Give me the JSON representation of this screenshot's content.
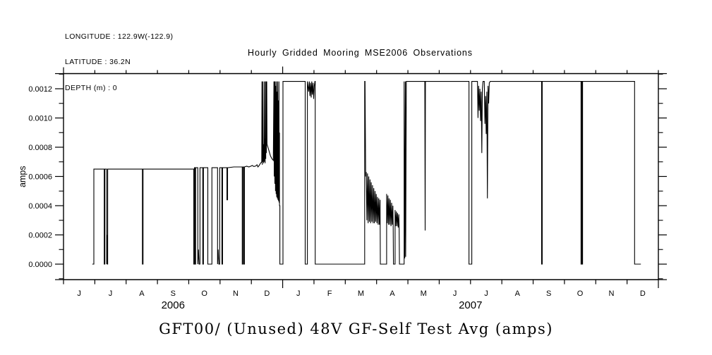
{
  "header": {
    "longitude": "LONGITUDE : 122.9W(-122.9)",
    "latitude": "LATITUDE : 36.2N",
    "depth": "DEPTH (m) : 0"
  },
  "title": "Hourly Gridded Mooring MSE2006 Observations",
  "bottom_title": "GFT00/ (Unused) 48V GF-Self Test Avg (amps)",
  "chart_data": {
    "type": "line",
    "title": "Hourly Gridded Mooring MSE2006 Observations",
    "xlabel": "",
    "ylabel": "amps",
    "line_color": "#000000",
    "background": "#ffffff",
    "grid": false,
    "legend": false,
    "x_axis": {
      "start": "Jun 2006",
      "end": "Jan 2008",
      "n_months": 19,
      "month_labels": [
        "J",
        "J",
        "A",
        "S",
        "O",
        "N",
        "D",
        "J",
        "F",
        "M",
        "A",
        "M",
        "J",
        "J",
        "A",
        "S",
        "O",
        "N",
        "D"
      ],
      "year_labels": [
        {
          "text": "2006",
          "span_months": [
            0,
            7
          ]
        },
        {
          "text": "2007",
          "span_months": [
            7,
            19
          ]
        }
      ],
      "year_boundary_ticks_months": [
        7,
        19
      ]
    },
    "y_axis": {
      "min": -0.0001,
      "max": 0.0013,
      "major_ticks": [
        {
          "value": 0.0,
          "label": "0.0000"
        },
        {
          "value": 0.0002,
          "label": "0.0002"
        },
        {
          "value": 0.0004,
          "label": "0.0004"
        },
        {
          "value": 0.0006,
          "label": "0.0006"
        },
        {
          "value": 0.0008,
          "label": "0.0008"
        },
        {
          "value": 0.001,
          "label": "0.0010"
        },
        {
          "value": 0.0012,
          "label": "0.0012"
        }
      ],
      "minor_ticks": [
        -0.0001,
        0.0001,
        0.0003,
        0.0005,
        0.0007,
        0.0009,
        0.0011,
        0.0013
      ]
    },
    "series": [
      {
        "name": "GFT00 48V GF-Self Test Avg",
        "units": "amps",
        "x_unit": "months since 2006-06-01",
        "points": [
          [
            0.92,
            0
          ],
          [
            0.97,
            0
          ],
          [
            0.97,
            0.00065
          ],
          [
            1.3,
            0.00065
          ],
          [
            1.3,
            0
          ],
          [
            1.32,
            0
          ],
          [
            1.32,
            0.00065
          ],
          [
            1.38,
            0.00065
          ],
          [
            1.38,
            0
          ],
          [
            1.39,
            0.0002
          ],
          [
            1.4,
            0
          ],
          [
            1.41,
            0
          ],
          [
            1.41,
            0.00065
          ],
          [
            2.52,
            0.00065
          ],
          [
            2.52,
            0
          ],
          [
            2.54,
            0
          ],
          [
            2.54,
            0.00065
          ],
          [
            4.16,
            0.00065
          ],
          [
            4.16,
            0
          ],
          [
            4.18,
            0
          ],
          [
            4.18,
            0.00066
          ],
          [
            4.2,
            0.00066
          ],
          [
            4.2,
            0
          ],
          [
            4.22,
            0
          ],
          [
            4.22,
            0.00066
          ],
          [
            4.29,
            0.00066
          ],
          [
            4.29,
            0
          ],
          [
            4.31,
            0.0001
          ],
          [
            4.33,
            0
          ],
          [
            4.36,
            0
          ],
          [
            4.36,
            0.00066
          ],
          [
            4.45,
            0.00066
          ],
          [
            4.45,
            0
          ],
          [
            4.47,
            0
          ],
          [
            4.47,
            0.00066
          ],
          [
            4.61,
            0.00066
          ],
          [
            4.61,
            0
          ],
          [
            4.74,
            0
          ],
          [
            4.74,
            0.00066
          ],
          [
            4.92,
            0.00066
          ],
          [
            4.92,
            0
          ],
          [
            4.94,
            0.0001
          ],
          [
            4.96,
            0
          ],
          [
            4.99,
            0
          ],
          [
            4.99,
            0.00066
          ],
          [
            5.06,
            0.00066
          ],
          [
            5.06,
            0
          ],
          [
            5.08,
            0
          ],
          [
            5.08,
            0.00066
          ],
          [
            5.22,
            0.00066
          ],
          [
            5.22,
            0.00044
          ],
          [
            5.24,
            0.00044
          ],
          [
            5.24,
            0.00066
          ],
          [
            5.44,
            0.000665
          ],
          [
            5.71,
            0.000665
          ],
          [
            5.71,
            0
          ],
          [
            5.73,
            0
          ],
          [
            5.73,
            0.000665
          ],
          [
            5.76,
            0.000665
          ],
          [
            5.76,
            0
          ],
          [
            5.78,
            0
          ],
          [
            5.78,
            0.000665
          ],
          [
            5.85,
            0.00067
          ],
          [
            5.92,
            0.000665
          ],
          [
            5.98,
            0.00067
          ],
          [
            6.03,
            0.000675
          ],
          [
            6.08,
            0.000668
          ],
          [
            6.14,
            0.000672
          ],
          [
            6.18,
            0.00068
          ],
          [
            6.21,
            0.000665
          ],
          [
            6.25,
            0.000675
          ],
          [
            6.29,
            0.00069
          ],
          [
            6.33,
            0.0007
          ],
          [
            6.34,
            0.00125
          ],
          [
            6.35,
            0.00068
          ],
          [
            6.36,
            0.00125
          ],
          [
            6.37,
            0.0007
          ],
          [
            6.38,
            0.00082
          ],
          [
            6.39,
            0.00069
          ],
          [
            6.4,
            0.0008
          ],
          [
            6.41,
            0.00125
          ],
          [
            6.42,
            0.0007
          ],
          [
            6.43,
            0.00086
          ],
          [
            6.44,
            0.00069
          ],
          [
            6.45,
            0.00125
          ],
          [
            6.46,
            0.00072
          ],
          [
            6.47,
            0.00125
          ],
          [
            6.48,
            0.00076
          ],
          [
            6.49,
            0.00125
          ],
          [
            6.5,
            0.00082
          ],
          [
            6.53,
            0.0008
          ],
          [
            6.57,
            0.00077
          ],
          [
            6.61,
            0.00074
          ],
          [
            6.66,
            0.00072
          ],
          [
            6.7,
            0.00071
          ],
          [
            6.72,
            0.00125
          ],
          [
            6.73,
            0.0006
          ],
          [
            6.74,
            0.00125
          ],
          [
            6.75,
            0.00055
          ],
          [
            6.76,
            0.00125
          ],
          [
            6.77,
            0.0005
          ],
          [
            6.78,
            0.00122
          ],
          [
            6.79,
            0.00048
          ],
          [
            6.8,
            0.00125
          ],
          [
            6.81,
            0.00046
          ],
          [
            6.82,
            0.00118
          ],
          [
            6.83,
            0.00045
          ],
          [
            6.84,
            0.00125
          ],
          [
            6.85,
            0.00044
          ],
          [
            6.86,
            0.00112
          ],
          [
            6.87,
            0.00043
          ],
          [
            6.88,
            0.00125
          ],
          [
            6.89,
            0.00042
          ],
          [
            6.9,
            0.0009
          ],
          [
            6.9,
            0.0004
          ],
          [
            6.91,
            0.0004
          ],
          [
            6.91,
            0
          ],
          [
            7.01,
            0
          ],
          [
            7.01,
            0.00125
          ],
          [
            7.72,
            0.00125
          ],
          [
            7.72,
            0
          ],
          [
            7.79,
            0
          ],
          [
            7.79,
            0.00125
          ],
          [
            7.83,
            0.00118
          ],
          [
            7.85,
            0.00125
          ],
          [
            7.87,
            0.00115
          ],
          [
            7.89,
            0.00124
          ],
          [
            7.91,
            0.00114
          ],
          [
            7.93,
            0.00125
          ],
          [
            7.95,
            0.00116
          ],
          [
            7.97,
            0.00124
          ],
          [
            7.99,
            0.00113
          ],
          [
            8.01,
            0.00122
          ],
          [
            8.03,
            0.00125
          ],
          [
            8.04,
            0.00125
          ],
          [
            8.04,
            0
          ],
          [
            9.62,
            0
          ],
          [
            9.62,
            0.00125
          ],
          [
            9.63,
            0.00125
          ],
          [
            9.65,
            0.0006
          ],
          [
            9.67,
            0.00063
          ],
          [
            9.69,
            0.0003
          ],
          [
            9.71,
            0.00062
          ],
          [
            9.73,
            0.00028
          ],
          [
            9.75,
            0.0006
          ],
          [
            9.77,
            0.00029
          ],
          [
            9.79,
            0.00058
          ],
          [
            9.81,
            0.00028
          ],
          [
            9.83,
            0.00056
          ],
          [
            9.85,
            0.00029
          ],
          [
            9.87,
            0.00054
          ],
          [
            9.89,
            0.00028
          ],
          [
            9.91,
            0.00052
          ],
          [
            9.93,
            0.00028
          ],
          [
            9.95,
            0.0005
          ],
          [
            9.97,
            0.00029
          ],
          [
            9.99,
            0.00048
          ],
          [
            10.01,
            0.00028
          ],
          [
            10.03,
            0.00046
          ],
          [
            10.05,
            0.00027
          ],
          [
            10.07,
            0.00045
          ],
          [
            10.09,
            0.00027
          ],
          [
            10.11,
            0.00044
          ],
          [
            10.12,
            0
          ],
          [
            10.32,
            0
          ],
          [
            10.32,
            0.00048
          ],
          [
            10.34,
            0.00028
          ],
          [
            10.36,
            0.00047
          ],
          [
            10.38,
            0.00027
          ],
          [
            10.4,
            0.00045
          ],
          [
            10.42,
            0.00027
          ],
          [
            10.44,
            0.00044
          ],
          [
            10.46,
            0.00026
          ],
          [
            10.48,
            0.00042
          ],
          [
            10.5,
            0.00027
          ],
          [
            10.52,
            0.0004
          ],
          [
            10.53,
            0.00026
          ],
          [
            10.54,
            0
          ],
          [
            10.59,
            0
          ],
          [
            10.59,
            0.00037
          ],
          [
            10.61,
            0.00026
          ],
          [
            10.63,
            0.00036
          ],
          [
            10.65,
            0.00026
          ],
          [
            10.67,
            0.00035
          ],
          [
            10.69,
            0.00025
          ],
          [
            10.71,
            0.00034
          ],
          [
            10.72,
            0.00026
          ],
          [
            10.73,
            0
          ],
          [
            10.88,
            0
          ],
          [
            10.88,
            0.00125
          ],
          [
            10.9,
            4e-05
          ],
          [
            10.92,
            0.00125
          ],
          [
            10.93,
            5e-05
          ],
          [
            10.95,
            0.00125
          ],
          [
            11.54,
            0.00125
          ],
          [
            11.55,
            0.00023
          ],
          [
            11.56,
            0.00125
          ],
          [
            12.93,
            0.00125
          ],
          [
            12.95,
            0.00125
          ],
          [
            12.95,
            0
          ],
          [
            13.04,
            0
          ],
          [
            13.04,
            0.00125
          ],
          [
            13.22,
            0.00125
          ],
          [
            13.24,
            0.001
          ],
          [
            13.26,
            0.00122
          ],
          [
            13.28,
            0.00105
          ],
          [
            13.3,
            0.0012
          ],
          [
            13.32,
            0.00098
          ],
          [
            13.34,
            0.00118
          ],
          [
            13.36,
            0.00076
          ],
          [
            13.38,
            0.0012
          ],
          [
            13.4,
            0.00125
          ],
          [
            13.44,
            0.00125
          ],
          [
            13.46,
            0.00096
          ],
          [
            13.48,
            0.00115
          ],
          [
            13.5,
            0.00089
          ],
          [
            13.52,
            0.00118
          ],
          [
            13.54,
            0.00045
          ],
          [
            13.56,
            0.00122
          ],
          [
            13.58,
            0.0011
          ],
          [
            13.6,
            0.00124
          ],
          [
            13.63,
            0.00125
          ],
          [
            15.27,
            0.00125
          ],
          [
            15.27,
            0
          ],
          [
            15.29,
            0
          ],
          [
            15.29,
            0.00125
          ],
          [
            16.53,
            0.00125
          ],
          [
            16.53,
            0
          ],
          [
            16.55,
            0
          ],
          [
            16.55,
            0.00125
          ],
          [
            16.56,
            0.00125
          ],
          [
            16.56,
            0
          ],
          [
            16.58,
            0
          ],
          [
            16.58,
            0.00125
          ],
          [
            18.24,
            0.00125
          ],
          [
            18.24,
            0
          ],
          [
            18.44,
            0
          ]
        ]
      }
    ]
  }
}
